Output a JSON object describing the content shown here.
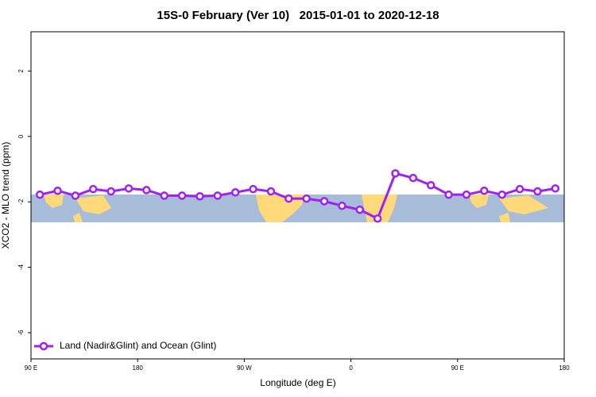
{
  "chart_data": {
    "type": "line",
    "title": "15S-0 February (Ver 10)   2015-01-01 to 2020-12-18",
    "x_label": "Longitude (deg E)",
    "y_label": "XCO2 - MLO trend (ppm)",
    "x": [
      97.5,
      112.5,
      127.5,
      142.5,
      157.5,
      172.5,
      187.5,
      202.5,
      217.5,
      232.5,
      247.5,
      262.5,
      277.5,
      292.5,
      307.5,
      322.5,
      337.5,
      352.5,
      367.5,
      382.5,
      397.5,
      412.5,
      427.5,
      442.5,
      457.5,
      472.5,
      487.5,
      502.5,
      517.5,
      532.5
    ],
    "series": [
      {
        "name": "Land (Nadir&Glint) and Ocean (Glint)",
        "color": "#a020f0",
        "values": [
          -1.78,
          -1.66,
          -1.81,
          -1.61,
          -1.68,
          -1.59,
          -1.64,
          -1.81,
          -1.81,
          -1.83,
          -1.81,
          -1.71,
          -1.61,
          -1.68,
          -1.9,
          -1.9,
          -1.98,
          -2.12,
          -2.24,
          -2.51,
          -1.13,
          -1.27,
          -1.49,
          -1.78,
          -1.78,
          -1.66,
          -1.78,
          -1.61,
          -1.68,
          -1.59
        ]
      }
    ],
    "xlim": [
      90,
      540
    ],
    "xticks": [
      {
        "value": 90,
        "label": "90 E"
      },
      180,
      {
        "value": 270,
        "label": "90 W"
      },
      {
        "value": 360,
        "label": "0"
      },
      {
        "value": 450,
        "label": "90 E"
      },
      {
        "value": 540,
        "label": "180"
      }
    ],
    "ylim": [
      -6.8,
      3.2
    ],
    "yticks": [
      -6,
      -4,
      -2,
      0,
      2
    ],
    "legend": "bottom-left"
  }
}
